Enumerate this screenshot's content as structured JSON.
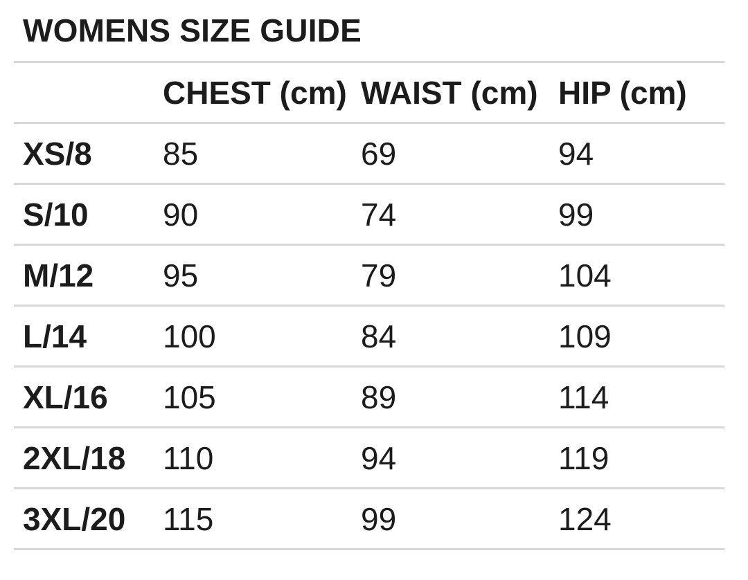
{
  "title": "WOMENS SIZE GUIDE",
  "table": {
    "headers": {
      "size": "",
      "chest": "CHEST (cm)",
      "waist": "WAIST (cm)",
      "hip": "HIP (cm)"
    },
    "rows": [
      {
        "size": "XS/8",
        "chest": "85",
        "waist": "69",
        "hip": "94"
      },
      {
        "size": "S/10",
        "chest": "90",
        "waist": "74",
        "hip": "99"
      },
      {
        "size": "M/12",
        "chest": "95",
        "waist": "79",
        "hip": "104"
      },
      {
        "size": "L/14",
        "chest": "100",
        "waist": "84",
        "hip": "109"
      },
      {
        "size": "XL/16",
        "chest": "105",
        "waist": "89",
        "hip": "114"
      },
      {
        "size": "2XL/18",
        "chest": "110",
        "waist": "94",
        "hip": "119"
      },
      {
        "size": "3XL/20",
        "chest": "115",
        "waist": "99",
        "hip": "124"
      }
    ]
  },
  "colors": {
    "text": "#1c1c1c",
    "divider": "#d7d7d7",
    "background": "#ffffff"
  }
}
